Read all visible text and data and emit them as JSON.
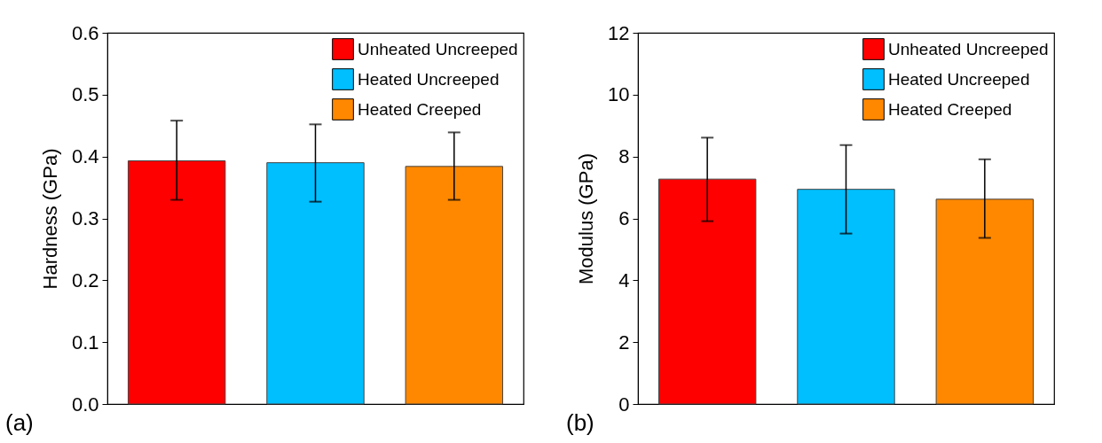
{
  "chart_data": [
    {
      "type": "bar",
      "ylabel": "Hardness (GPa)",
      "categories": [
        null,
        null,
        null
      ],
      "ylim": [
        0,
        0.6
      ],
      "yticks": [
        {
          "value": 0,
          "label": "0.0"
        },
        0.1,
        0.2,
        0.3,
        0.4,
        0.5,
        0.6
      ],
      "grid": false,
      "legend": "top right",
      "tick_labels": "y",
      "annotations": [
        "(a)"
      ],
      "series": [
        {
          "name": "Unheated Uncreeped",
          "color": "#ff0000",
          "values": [
            0.393,
            null,
            null
          ],
          "errors": [
            [
              0.33,
              0.458
            ],
            null,
            null
          ]
        },
        {
          "name": "Heated Uncreeped",
          "color": "#00bfff",
          "values": [
            null,
            0.39,
            null
          ],
          "errors": [
            null,
            [
              0.327,
              0.452
            ],
            null
          ]
        },
        {
          "name": "Heated Creeped",
          "color": "#ff8800",
          "values": [
            null,
            null,
            0.384
          ],
          "errors": [
            null,
            null,
            [
              0.33,
              0.439
            ]
          ]
        }
      ]
    },
    {
      "type": "bar",
      "ylabel": "Modulus (GPa)",
      "categories": [
        null,
        null,
        null
      ],
      "ylim": [
        0,
        12
      ],
      "yticks": [
        0,
        2,
        4,
        6,
        8,
        10,
        12
      ],
      "grid": false,
      "legend": "top right",
      "tick_labels": "y",
      "annotations": [
        "(b)"
      ],
      "series": [
        {
          "name": "Unheated Uncreeped",
          "color": "#ff0000",
          "values": [
            7.27,
            null,
            null
          ],
          "errors": [
            [
              5.91,
              8.61
            ],
            null,
            null
          ]
        },
        {
          "name": "Heated Uncreeped",
          "color": "#00bfff",
          "values": [
            null,
            6.94,
            null
          ],
          "errors": [
            null,
            [
              5.51,
              8.37
            ],
            null
          ]
        },
        {
          "name": "Heated Creeped",
          "color": "#ff8800",
          "values": [
            null,
            null,
            6.62
          ],
          "errors": [
            null,
            null,
            [
              5.37,
              7.91
            ]
          ]
        }
      ]
    }
  ]
}
